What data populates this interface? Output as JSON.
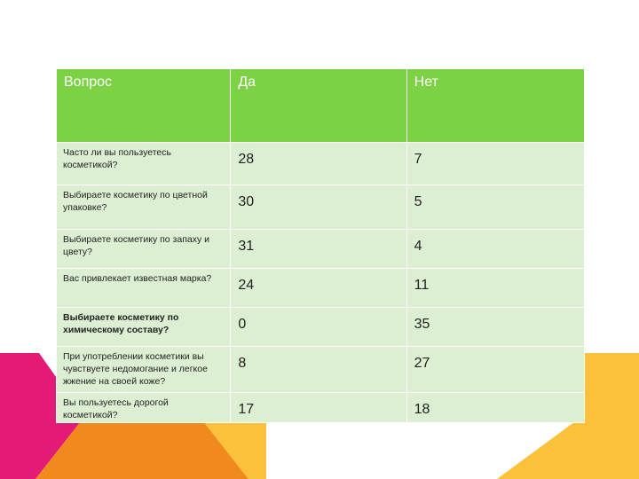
{
  "colors": {
    "header_green": "#7dd144",
    "row_light_green": "#dcefd2",
    "deco_magenta": "#e41b76",
    "deco_orange": "#f08a1c",
    "deco_yellow": "#fbc13a"
  },
  "table": {
    "headers": [
      "Вопрос",
      "Да",
      "Нет"
    ],
    "rows": [
      {
        "question": "Часто ли вы пользуетесь косметикой?",
        "yes": "28",
        "no": "7"
      },
      {
        "question": "Выбираете косметику по цветной упаковке?",
        "yes": "30",
        "no": "5"
      },
      {
        "question": "Выбираете косметику по запаху и цвету?",
        "yes": "31",
        "no": "4"
      },
      {
        "question": "Вас привлекает известная марка?",
        "yes": "24",
        "no": "11"
      },
      {
        "question": "Выбираете косметику по химическому составу?",
        "yes": "0",
        "no": "35"
      },
      {
        "question": "При употреблении косметики вы чувствуете недомогание и легкое жжение на своей коже?",
        "yes": "8",
        "no": "27"
      },
      {
        "question": "Вы пользуетесь дорогой косметикой?",
        "yes": "17",
        "no": "18"
      }
    ]
  }
}
